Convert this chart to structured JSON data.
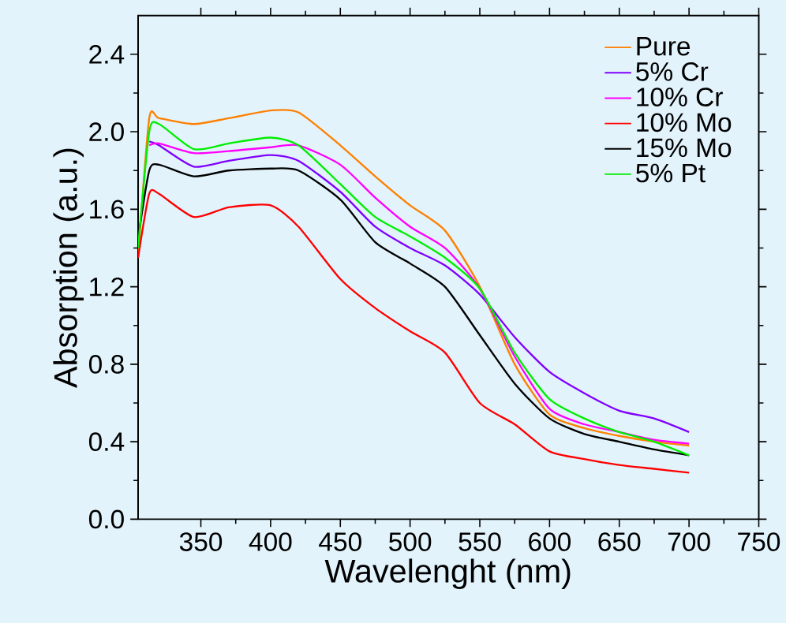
{
  "chart_data": {
    "type": "line",
    "xlabel": "Wavelenght (nm)",
    "ylabel": "Absorption (a.u.)",
    "x": [
      305,
      313,
      320,
      345,
      370,
      400,
      420,
      450,
      475,
      500,
      525,
      550,
      575,
      600,
      625,
      650,
      675,
      700
    ],
    "series": [
      {
        "name": "Pure",
        "color": "#ff8000",
        "values": [
          1.35,
          2.07,
          2.07,
          2.04,
          2.07,
          2.11,
          2.1,
          1.93,
          1.77,
          1.62,
          1.49,
          1.2,
          0.8,
          0.54,
          0.47,
          0.43,
          0.4,
          0.38
        ]
      },
      {
        "name": "5% Cr",
        "color": "#8000ff",
        "values": [
          null,
          1.95,
          1.93,
          1.82,
          1.85,
          1.88,
          1.85,
          1.69,
          1.51,
          1.4,
          1.31,
          1.16,
          0.94,
          0.76,
          0.65,
          0.56,
          0.52,
          0.45
        ]
      },
      {
        "name": "10% Cr",
        "color": "#ff00ff",
        "values": [
          null,
          1.93,
          1.94,
          1.89,
          1.9,
          1.92,
          1.93,
          1.83,
          1.66,
          1.51,
          1.4,
          1.19,
          0.84,
          0.57,
          0.49,
          0.45,
          0.41,
          0.39
        ]
      },
      {
        "name": "10% Mo",
        "color": "#ff0000",
        "values": [
          1.35,
          1.68,
          1.68,
          1.56,
          1.61,
          1.62,
          1.51,
          1.24,
          1.09,
          0.97,
          0.86,
          0.6,
          0.49,
          0.35,
          0.31,
          0.28,
          0.26,
          0.24
        ]
      },
      {
        "name": "15% Mo",
        "color": "#000000",
        "values": [
          1.45,
          1.8,
          1.83,
          1.77,
          1.8,
          1.81,
          1.8,
          1.65,
          1.43,
          1.32,
          1.2,
          0.95,
          0.7,
          0.52,
          0.44,
          0.4,
          0.36,
          0.33
        ]
      },
      {
        "name": "5% Pt",
        "color": "#00ee00",
        "values": [
          1.4,
          2.0,
          2.04,
          1.91,
          1.94,
          1.97,
          1.93,
          1.73,
          1.56,
          1.46,
          1.35,
          1.19,
          0.86,
          0.62,
          0.52,
          0.45,
          0.4,
          0.33
        ]
      }
    ],
    "xlim": [
      305,
      750
    ],
    "ylim": [
      0,
      2.6
    ],
    "xticks": [
      350,
      400,
      450,
      500,
      550,
      600,
      650,
      700,
      750
    ],
    "yticks": [
      {
        "value": 0,
        "label": "0.0"
      },
      {
        "value": 0.4,
        "label": "0.4"
      },
      {
        "value": 0.8,
        "label": "0.8"
      },
      {
        "value": 1.2,
        "label": "1.2"
      },
      {
        "value": 1.6,
        "label": "1.6"
      },
      {
        "value": 2.0,
        "label": "2.0"
      },
      {
        "value": 2.4,
        "label": "2.4"
      }
    ],
    "grid": false,
    "legend": "top right",
    "marker": "none",
    "line_style": "solid"
  }
}
